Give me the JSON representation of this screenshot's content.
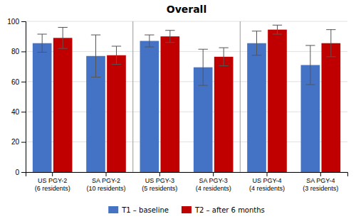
{
  "chart_data": {
    "type": "bar",
    "title": "Overall",
    "categories": [
      "US PGY-2\n(6 residents)",
      "SA PGY-2\n(10 residents)",
      "US PGY-3\n(5 residents)",
      "SA PGY-3\n(4 residents)",
      "US PGY-4\n(4 residents)",
      "SA PGY-4\n(3 residents)"
    ],
    "series": [
      {
        "name": "T1 – baseline",
        "color": "#4472C4",
        "values": [
          85.5,
          77.0,
          87.0,
          69.5,
          85.5,
          71.0
        ],
        "errors": [
          6,
          14,
          4,
          12,
          8,
          13
        ]
      },
      {
        "name": "T2 – after 6 months",
        "color": "#C00000",
        "values": [
          89.0,
          77.5,
          90.0,
          76.5,
          94.5,
          85.5
        ],
        "errors": [
          7,
          6,
          4,
          6,
          3,
          9
        ]
      }
    ],
    "ylim": [
      0,
      100
    ],
    "yticks": [
      0,
      20,
      40,
      60,
      80,
      100
    ],
    "grid": true,
    "legend": "bottom"
  }
}
